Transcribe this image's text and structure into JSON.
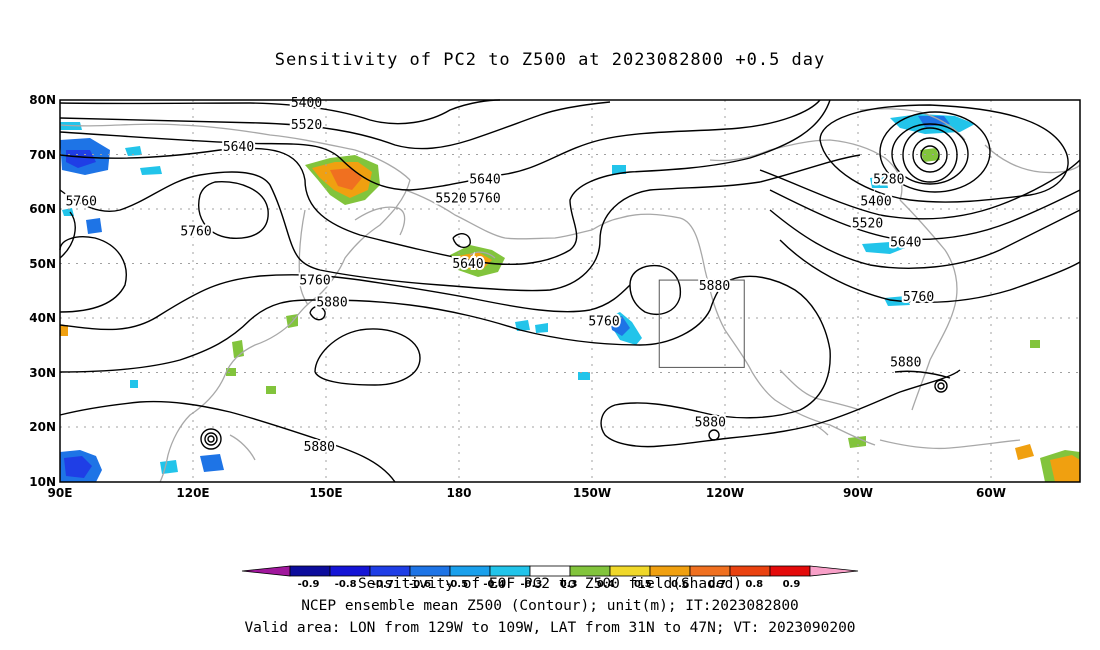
{
  "title": "Sensitivity of PC2 to Z500 at 2023082800 +0.5 day",
  "map": {
    "lon_labels": [
      "90E",
      "120E",
      "150E",
      "180",
      "150W",
      "120W",
      "90W",
      "60W"
    ],
    "lat_labels": [
      "80N",
      "70N",
      "60N",
      "50N",
      "40N",
      "30N",
      "20N",
      "10N"
    ],
    "contour_labels": [
      {
        "text": "5400",
        "lon": 148,
        "lat": 79.5
      },
      {
        "text": "5520",
        "lon": 148,
        "lat": 75.5
      },
      {
        "text": "5640",
        "lon": 132,
        "lat": 71.5
      },
      {
        "text": "5760",
        "lon": 95,
        "lat": 61.5
      },
      {
        "text": "5760",
        "lon": 122,
        "lat": 56
      },
      {
        "text": "5520",
        "lon": 182,
        "lat": 62
      },
      {
        "text": "5640",
        "lon": 190,
        "lat": 65.5
      },
      {
        "text": "5760",
        "lon": 190,
        "lat": 62
      },
      {
        "text": "5640",
        "lon": 186,
        "lat": 50
      },
      {
        "text": "5760",
        "lon": 150,
        "lat": 47
      },
      {
        "text": "5880",
        "lon": 154,
        "lat": 43
      },
      {
        "text": "5760",
        "lon": 218,
        "lat": 39.5
      },
      {
        "text": "5880",
        "lon": 244,
        "lat": 46
      },
      {
        "text": "5280",
        "lon": 285,
        "lat": 65.5
      },
      {
        "text": "5400",
        "lon": 282,
        "lat": 61.5
      },
      {
        "text": "5520",
        "lon": 280,
        "lat": 57.5
      },
      {
        "text": "5640",
        "lon": 289,
        "lat": 54
      },
      {
        "text": "5760",
        "lon": 292,
        "lat": 44
      },
      {
        "text": "5880",
        "lon": 289,
        "lat": 32
      },
      {
        "text": "5880",
        "lon": 151,
        "lat": 16.5
      },
      {
        "text": "5880",
        "lon": 243,
        "lat": 21
      }
    ],
    "valid_box": {
      "lon_min": -129,
      "lon_max": -109,
      "lat_min": 31,
      "lat_max": 47
    }
  },
  "colorbar": {
    "labels": [
      "-0.9",
      "-0.8",
      "-0.7",
      "-0.6",
      "-0.5",
      "-0.4",
      "-0.3",
      "0.3",
      "0.4",
      "0.5",
      "0.6",
      "0.7",
      "0.8",
      "0.9"
    ],
    "colors": [
      "#a0179c",
      "#0c0c9c",
      "#1414d6",
      "#1f3ee6",
      "#1e74e6",
      "#1aa0ec",
      "#22c4ea",
      "#ffffff",
      "#82c43c",
      "#f0d82a",
      "#f0a010",
      "#f07020",
      "#ea4210",
      "#e40a0a",
      "#f8a0c8"
    ]
  },
  "captions": {
    "line1": "Sensitivity of EOF PC2 to Z500 field(Shaded)",
    "line2": "NCEP ensemble mean Z500 (Contour); unit(m); IT:2023082800",
    "line3": "Valid area: LON from 129W to 109W, LAT from 31N to 47N; VT: 2023090200"
  },
  "colors": {
    "contour": "#000000",
    "coastline": "#a8a8a8",
    "grid": "#a0a0a0"
  }
}
